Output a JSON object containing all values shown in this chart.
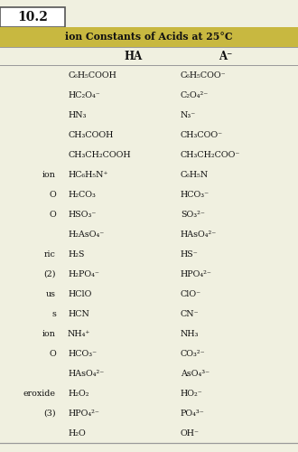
{
  "table_number": "10.2",
  "title": "ion Constants of Acids at 25°C",
  "col_headers": [
    "HA",
    "A⁻"
  ],
  "left_labels": [
    "",
    "",
    "",
    "",
    "",
    "ion",
    "O",
    "O",
    "",
    "ric",
    "(2)",
    "us",
    "s",
    "ion",
    "O",
    "",
    "eroxide",
    "(3)",
    ""
  ],
  "ha_col": [
    "C₆H₅COOH",
    "HC₂O₄⁻",
    "HN₃",
    "CH₃COOH",
    "CH₃CH₂COOH",
    "HC₆H₅N⁺",
    "H₂CO₃",
    "HSO₃⁻",
    "H₂AsO₄⁻",
    "H₂S",
    "H₂PO₄⁻",
    "HClO",
    "HCN",
    "NH₄⁺",
    "HCO₃⁻",
    "HAsO₄²⁻",
    "H₂O₂",
    "HPO₄²⁻",
    "H₂O"
  ],
  "a_col": [
    "C₆H₅COO⁻",
    "C₂O₄²⁻",
    "N₃⁻",
    "CH₃COO⁻",
    "CH₃CH₂COO⁻",
    "C₆H₅N",
    "HCO₃⁻",
    "SO₃²⁻",
    "HAsO₄²⁻",
    "HS⁻",
    "HPO₄²⁻",
    "ClO⁻",
    "CN⁻",
    "NH₃",
    "CO₃²⁻",
    "AsO₄³⁻",
    "HO₂⁻",
    "PO₄³⁻",
    "OH⁻"
  ],
  "bg_color": "#f0f0e0",
  "header_bg": "#c8b840",
  "table_number_bg": "#ffffff",
  "row_text_color": "#111111",
  "line_color": "#999999",
  "header_text_color": "#111111"
}
